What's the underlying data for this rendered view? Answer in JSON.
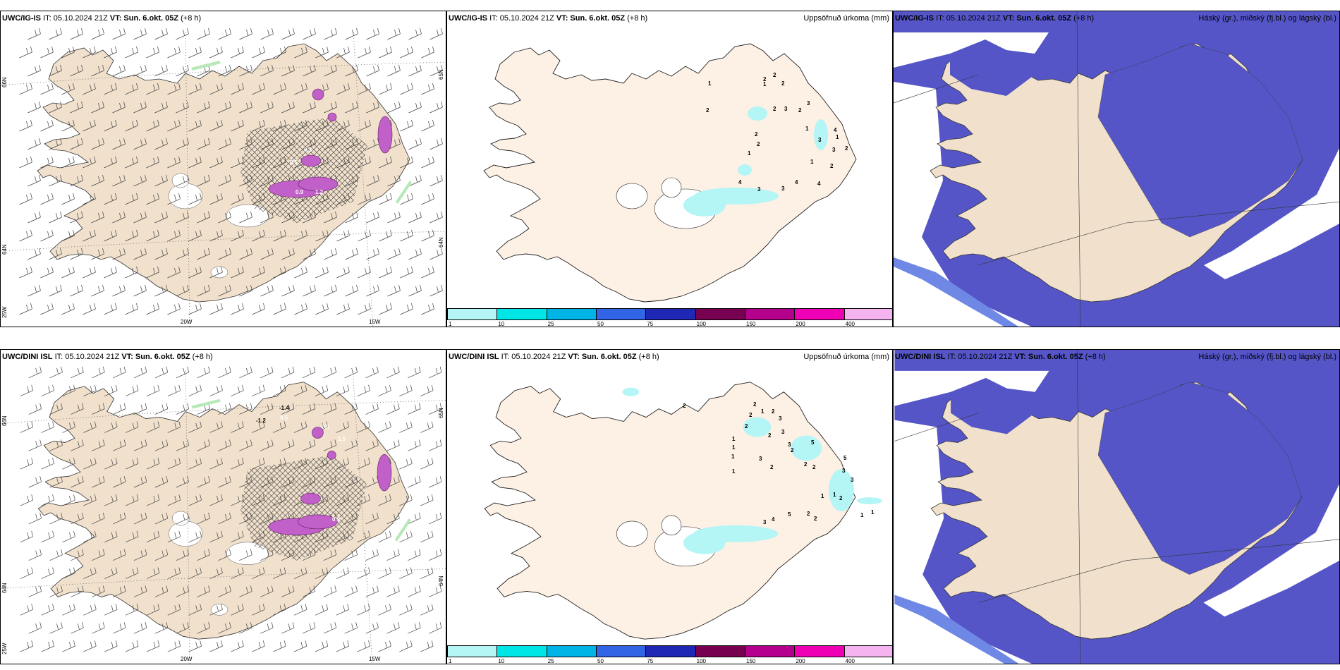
{
  "rows": [
    {
      "model": "UWC/IG-IS",
      "panels": [
        {
          "model": "UWC/IG-IS",
          "it_label": "IT: 05.10.2024 21Z",
          "vt_label": "VT: Sun. 6.okt. 05Z",
          "lead": "(+8 h)",
          "title": ""
        },
        {
          "model": "UWC/IG-IS",
          "it_label": "IT: 05.10.2024 21Z",
          "vt_label": "VT: Sun. 6.okt. 05Z",
          "lead": "(+8 h)",
          "title": "Uppsöfnuð úrkoma (mm)"
        },
        {
          "model": "UWC/IG-IS",
          "it_label": "IT: 05.10.2024 21Z",
          "vt_label": "VT: Sun. 6.okt. 05Z",
          "lead": "(+8 h)",
          "title": "Háský (gr.), miðský (fj.bl.) og lágský (bl.)"
        }
      ]
    },
    {
      "model": "UWC/DINI ISL",
      "panels": [
        {
          "model": "UWC/DINI ISL",
          "it_label": "IT: 05.10.2024 21Z",
          "vt_label": "VT: Sun. 6.okt. 05Z",
          "lead": "(+8 h)",
          "title": ""
        },
        {
          "model": "UWC/DINI ISL",
          "it_label": "IT: 05.10.2024 21Z",
          "vt_label": "VT: Sun. 6.okt. 05Z",
          "lead": "(+8 h)",
          "title": "Uppsöfnuð úrkoma (mm)"
        },
        {
          "model": "UWC/DINI ISL",
          "it_label": "IT: 05.10.2024 21Z",
          "vt_label": "VT: Sun. 6.okt. 05Z",
          "lead": "(+8 h)",
          "title": "Háský (gr.), miðský (fj.bl.) og lágský (bl.)"
        }
      ]
    }
  ],
  "axes": {
    "lon_labels": [
      "20W",
      "15W"
    ],
    "lat_labels_left": [
      "66N",
      "64N",
      "25W"
    ],
    "lat_labels_right": [
      "65N",
      "64N"
    ]
  },
  "colorbar": {
    "ticks": [
      "1",
      "10",
      "25",
      "50",
      "75",
      "100",
      "150",
      "200",
      "400"
    ],
    "colors": [
      "#b4f5f5",
      "#00e6e6",
      "#00b4e6",
      "#3264e6",
      "#1e28b4",
      "#780050",
      "#b4008c",
      "#f000b4",
      "#f5b4f0"
    ]
  },
  "precip_values_top": [
    "1",
    "2",
    "2",
    "2",
    "1",
    "2",
    "2",
    "3",
    "2",
    "3",
    "1",
    "2",
    "2",
    "1",
    "3",
    "4",
    "3",
    "3",
    "4",
    "1",
    "4",
    "2",
    "4",
    "1",
    "3",
    "2"
  ],
  "precip_values_bottom": [
    "2",
    "2",
    "1",
    "2",
    "2",
    "2",
    "3",
    "1",
    "3",
    "2",
    "3",
    "5",
    "2",
    "1",
    "3",
    "2",
    "5",
    "2",
    "3",
    "1",
    "3",
    "2",
    "4",
    "3",
    "5",
    "2",
    "2",
    "1",
    "1",
    "2",
    "1",
    "1",
    "1"
  ],
  "tpress_labels_top": [
    "0.1",
    "0.5",
    "0.9",
    "1.2"
  ],
  "tpress_labels_bottom": [
    "-1.2",
    "-1.4",
    "0.5",
    "0.9",
    "1.5",
    "0.6"
  ],
  "colors": {
    "land": "#f0e0cc",
    "land_precip": "#fdf0e4",
    "sea": "#ffffff",
    "cloud_low": "#5555c8",
    "cloud_mid": "#6f88e6",
    "cloud_edge": "#22aaee",
    "precip_light": "#b4f5f5",
    "magenta": "#c060c8"
  }
}
